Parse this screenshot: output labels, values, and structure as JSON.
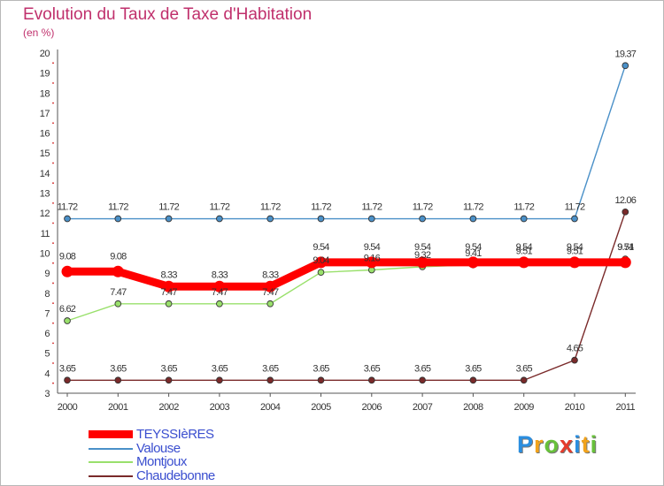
{
  "chart_data": {
    "type": "line",
    "title": "Evolution du Taux de Taxe d'Habitation",
    "subtitle": "(en %)",
    "xlabel": "",
    "ylabel": "",
    "ylim": [
      3,
      20
    ],
    "y_ticks": [
      3,
      4,
      5,
      6,
      7,
      8,
      9,
      10,
      11,
      12,
      13,
      14,
      15,
      16,
      17,
      18,
      19,
      20
    ],
    "categories": [
      "2000",
      "2001",
      "2002",
      "2003",
      "2004",
      "2005",
      "2006",
      "2007",
      "2008",
      "2009",
      "2010",
      "2011"
    ],
    "grid": false,
    "legend_position": "bottom-left",
    "series": [
      {
        "name": "TEYSSIèRES",
        "color": "#ff0000",
        "values": [
          9.08,
          9.08,
          8.33,
          8.33,
          8.33,
          9.54,
          9.54,
          9.54,
          9.54,
          9.54,
          9.54,
          9.54
        ],
        "labels": [
          "9.08",
          "9.08",
          "8.33",
          "8.33",
          "8.33",
          "9.54",
          "9.54",
          "9.54",
          "9.54",
          "9.54",
          "9.54",
          "9.54"
        ]
      },
      {
        "name": "Valouse",
        "color": "#4a90c8",
        "values": [
          11.72,
          11.72,
          11.72,
          11.72,
          11.72,
          11.72,
          11.72,
          11.72,
          11.72,
          11.72,
          11.72,
          19.37
        ],
        "labels": [
          "11.72",
          "11.72",
          "11.72",
          "11.72",
          "11.72",
          "11.72",
          "11.72",
          "11.72",
          "11.72",
          "11.72",
          "11.72",
          "19.37"
        ]
      },
      {
        "name": "Montjoux",
        "color": "#99e06b",
        "values": [
          6.62,
          7.47,
          7.47,
          7.47,
          7.47,
          9.04,
          9.16,
          9.32,
          9.41,
          9.51,
          9.51,
          9.71
        ],
        "labels": [
          "6.62",
          "7.47",
          "7.47",
          "7.47",
          "7.47",
          "9.04",
          "9.16",
          "9.32",
          "9.41",
          "9.51",
          "9.51",
          "9.71"
        ]
      },
      {
        "name": "Chaudebonne",
        "color": "#7a2a2a",
        "values": [
          3.65,
          3.65,
          3.65,
          3.65,
          3.65,
          3.65,
          3.65,
          3.65,
          3.65,
          3.65,
          4.65,
          12.06
        ],
        "labels": [
          "3.65",
          "3.65",
          "3.65",
          "3.65",
          "3.65",
          "3.65",
          "3.65",
          "3.65",
          "3.65",
          "3.65",
          "4.65",
          "12.06"
        ]
      }
    ]
  },
  "brand": {
    "letters": [
      "P",
      "r",
      "o",
      "x",
      "i",
      "t",
      "i"
    ],
    "colors": [
      "#2a8ee0",
      "#f2a31b",
      "#68c13b",
      "#e53b2b",
      "#2a8ee0",
      "#f2a31b",
      "#68c13b"
    ]
  }
}
